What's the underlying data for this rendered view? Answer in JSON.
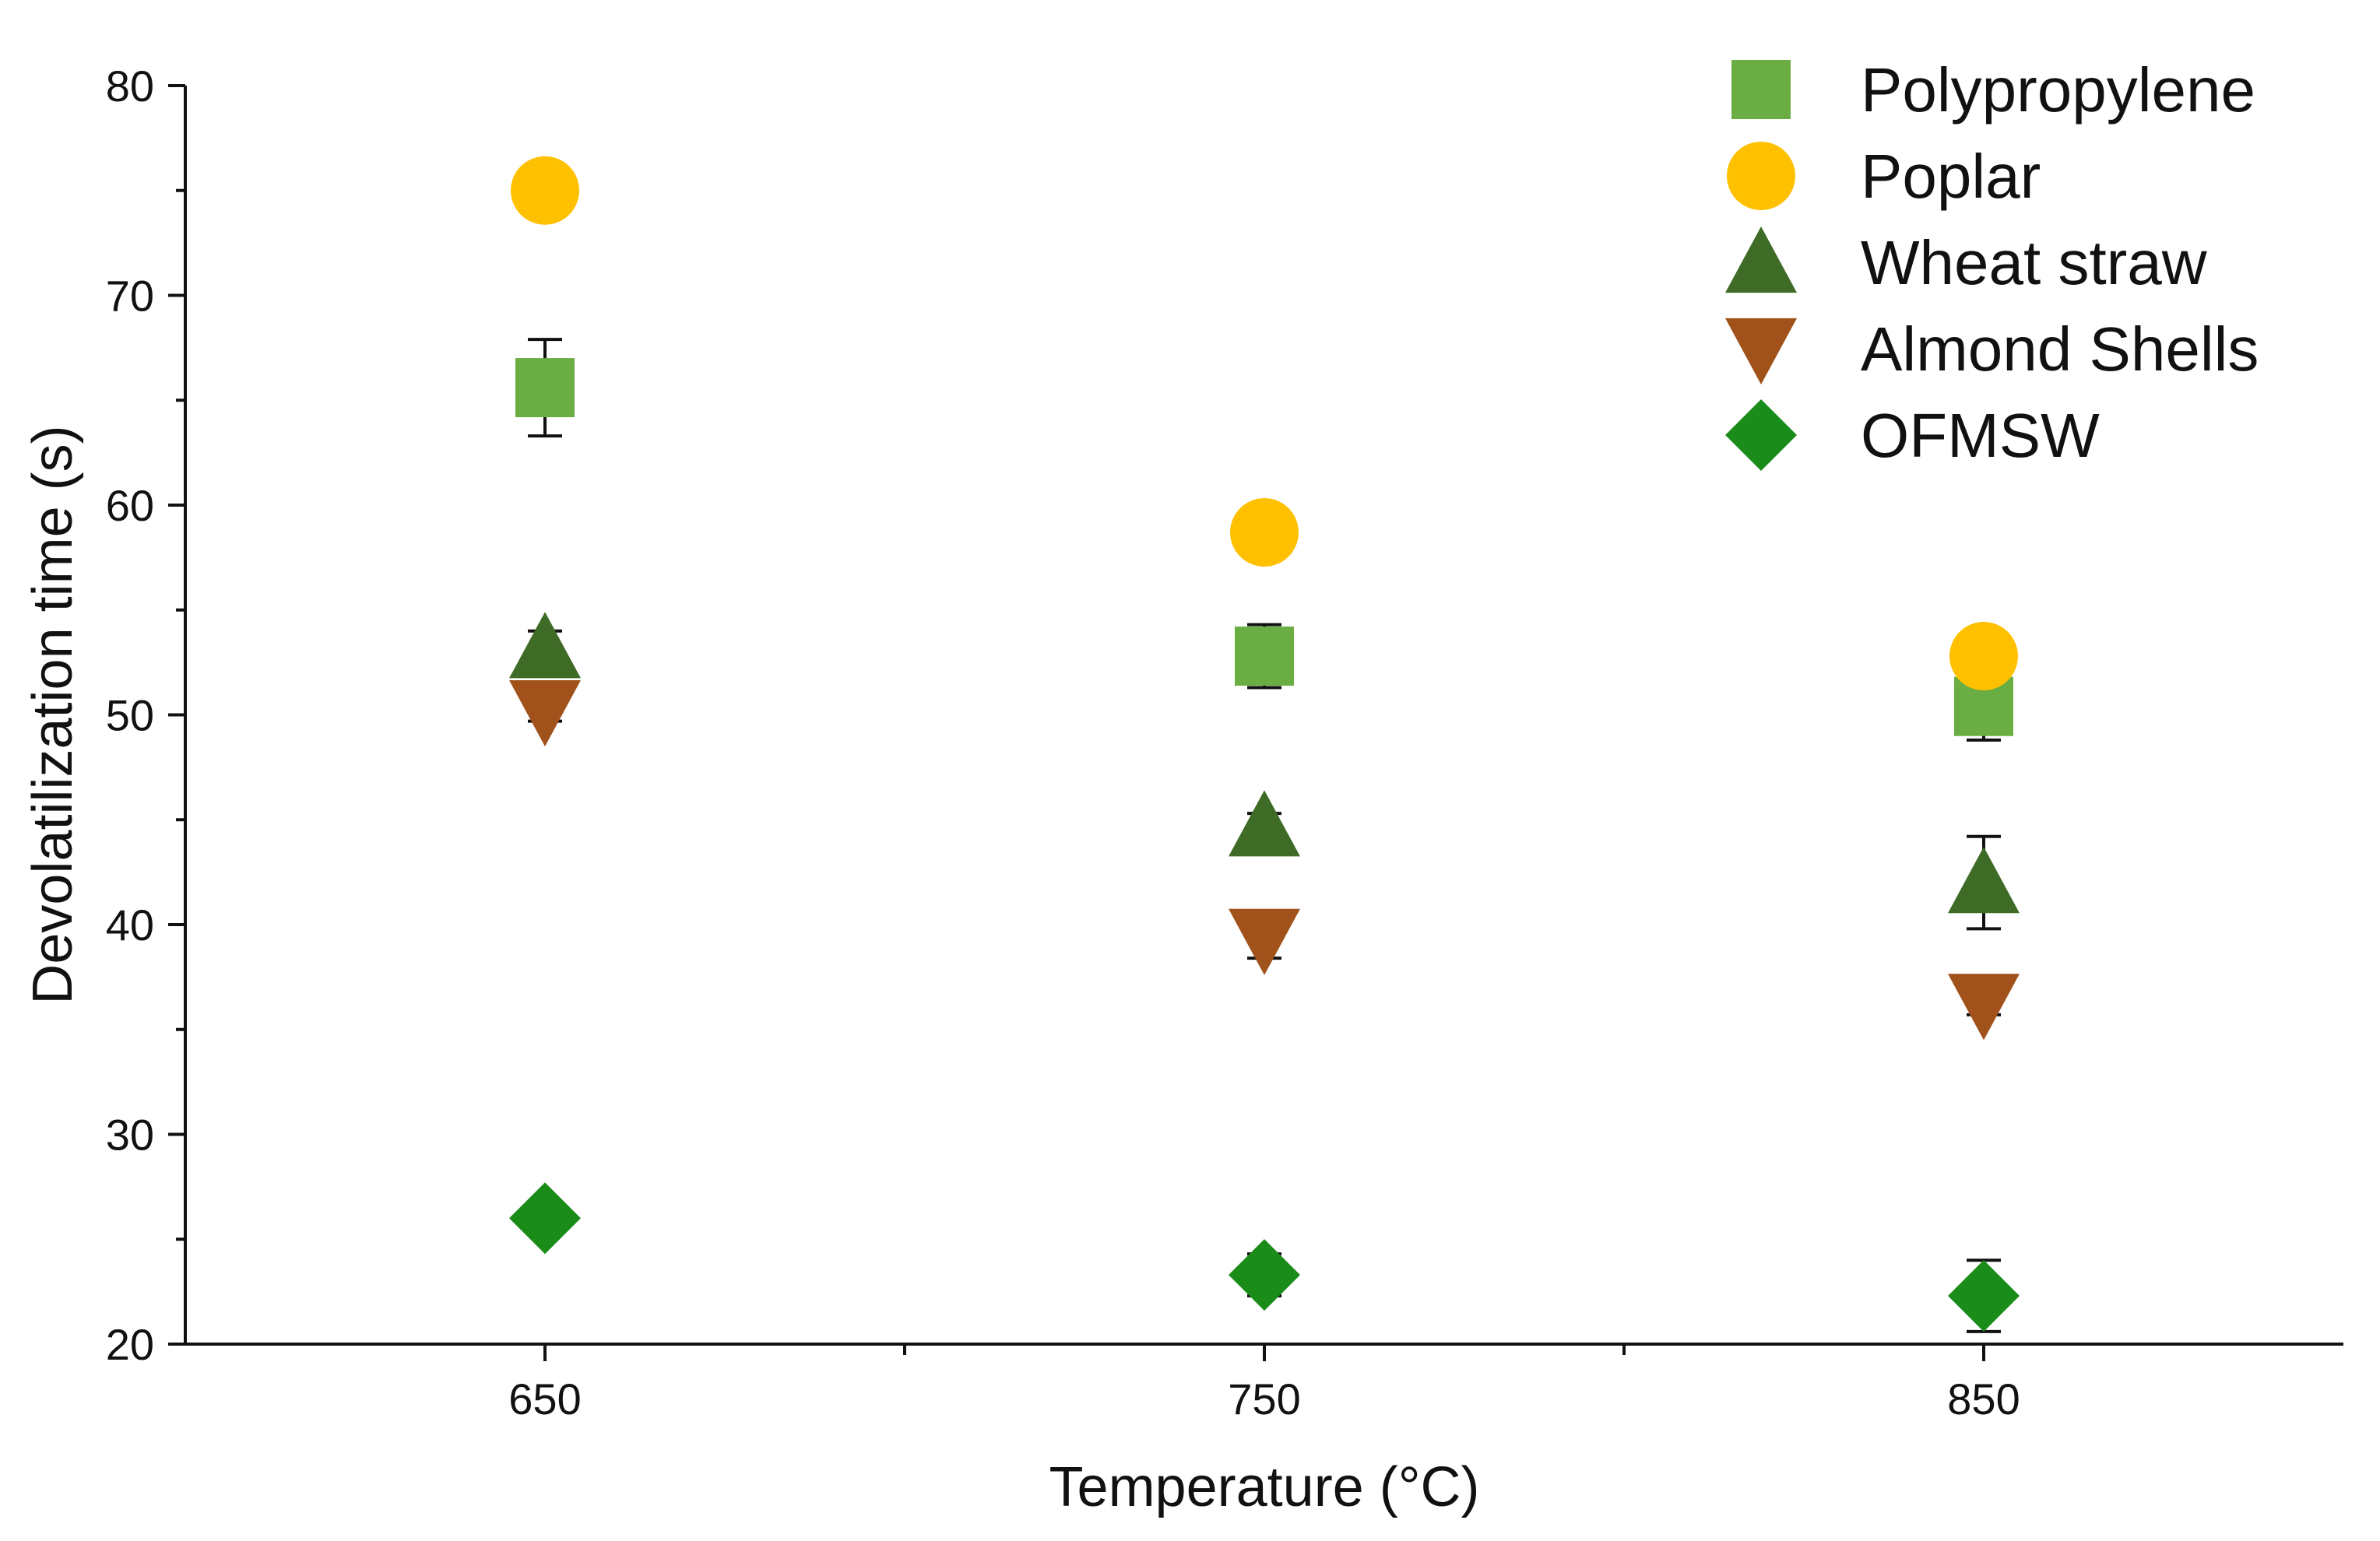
{
  "chart_data": {
    "type": "scatter",
    "title": "",
    "xlabel": "Temperature (°C)",
    "ylabel": "Devolatilization time (s)",
    "xlim": [
      600,
      900
    ],
    "ylim": [
      20,
      80
    ],
    "x_ticks": [
      650,
      750,
      850
    ],
    "x_minor_ticks": [
      700,
      800
    ],
    "y_ticks": [
      20,
      30,
      40,
      50,
      60,
      70,
      80
    ],
    "y_minor_ticks": [
      25,
      35,
      45,
      55,
      65,
      75
    ],
    "grid": false,
    "legend_position": "top-right",
    "series": [
      {
        "name": "Polypropylene",
        "marker": "square",
        "color": "#6AAE43",
        "x": [
          650,
          750,
          850
        ],
        "y": [
          65.6,
          52.8,
          50.4
        ],
        "error": [
          2.3,
          1.5,
          1.6
        ]
      },
      {
        "name": "Poplar",
        "marker": "circle",
        "color": "#FFC000",
        "x": [
          650,
          750,
          850
        ],
        "y": [
          75.0,
          58.7,
          52.8
        ],
        "error": [
          0.0,
          1.1,
          0.8
        ]
      },
      {
        "name": "Wheat straw",
        "marker": "triangle-up",
        "color": "#3E6B26",
        "x": [
          650,
          750,
          850
        ],
        "y": [
          53.2,
          44.7,
          42.0
        ],
        "error": [
          0.8,
          0.6,
          2.2
        ]
      },
      {
        "name": "Almond Shells",
        "marker": "triangle-down",
        "color": "#A0521A",
        "x": [
          650,
          750,
          850
        ],
        "y": [
          50.2,
          39.3,
          36.2
        ],
        "error": [
          0.5,
          0.9,
          0.5
        ]
      },
      {
        "name": "OFMSW",
        "marker": "diamond",
        "color": "#1A8C1A",
        "x": [
          650,
          750,
          850
        ],
        "y": [
          26.0,
          23.3,
          22.3
        ],
        "error": [
          0.0,
          1.0,
          1.7
        ]
      }
    ]
  }
}
